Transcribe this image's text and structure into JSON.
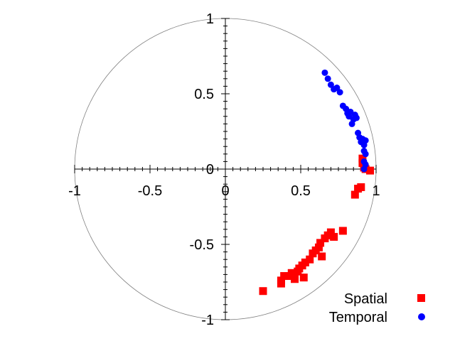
{
  "chart_data": {
    "type": "scatter",
    "title": "",
    "xlabel": "",
    "ylabel": "",
    "xlim": [
      -1,
      1
    ],
    "ylim": [
      -1,
      1
    ],
    "grid": false,
    "axes_through_origin": true,
    "unit_circle": true,
    "legend_position": "bottom-right",
    "x_ticks": [
      {
        "value": -1,
        "label": "-1"
      },
      {
        "value": -0.5,
        "label": "-0.5"
      },
      {
        "value": 0,
        "label": "0"
      },
      {
        "value": 0.5,
        "label": "0.5"
      },
      {
        "value": 1,
        "label": "1"
      }
    ],
    "y_ticks": [
      {
        "value": 1,
        "label": "1"
      },
      {
        "value": 0.5,
        "label": "0.5"
      },
      {
        "value": 0,
        "label": "0"
      },
      {
        "value": -0.5,
        "label": "-0.5"
      },
      {
        "value": -1,
        "label": "-1"
      }
    ],
    "series": [
      {
        "name": "Spatial",
        "color": "#ff0000",
        "marker": "square",
        "points": [
          [
            0.25,
            -0.81
          ],
          [
            0.37,
            -0.74
          ],
          [
            0.37,
            -0.76
          ],
          [
            0.39,
            -0.71
          ],
          [
            0.42,
            -0.71
          ],
          [
            0.44,
            -0.69
          ],
          [
            0.46,
            -0.72
          ],
          [
            0.46,
            -0.73
          ],
          [
            0.48,
            -0.68
          ],
          [
            0.49,
            -0.66
          ],
          [
            0.51,
            -0.64
          ],
          [
            0.52,
            -0.72
          ],
          [
            0.53,
            -0.62
          ],
          [
            0.56,
            -0.6
          ],
          [
            0.58,
            -0.56
          ],
          [
            0.6,
            -0.54
          ],
          [
            0.62,
            -0.52
          ],
          [
            0.63,
            -0.49
          ],
          [
            0.64,
            -0.58
          ],
          [
            0.66,
            -0.46
          ],
          [
            0.68,
            -0.44
          ],
          [
            0.7,
            -0.42
          ],
          [
            0.72,
            -0.45
          ],
          [
            0.78,
            -0.41
          ],
          [
            0.86,
            -0.17
          ],
          [
            0.88,
            -0.13
          ],
          [
            0.9,
            -0.12
          ],
          [
            0.91,
            0.07
          ],
          [
            0.91,
            0.04
          ],
          [
            0.92,
            0.02
          ],
          [
            0.92,
            0.01
          ],
          [
            0.93,
            0.0
          ],
          [
            0.96,
            -0.01
          ]
        ]
      },
      {
        "name": "Temporal",
        "color": "#0000ff",
        "marker": "circle",
        "points": [
          [
            0.66,
            0.64
          ],
          [
            0.68,
            0.6
          ],
          [
            0.7,
            0.56
          ],
          [
            0.72,
            0.53
          ],
          [
            0.74,
            0.54
          ],
          [
            0.76,
            0.51
          ],
          [
            0.78,
            0.42
          ],
          [
            0.8,
            0.4
          ],
          [
            0.81,
            0.37
          ],
          [
            0.82,
            0.35
          ],
          [
            0.83,
            0.38
          ],
          [
            0.84,
            0.3
          ],
          [
            0.85,
            0.33
          ],
          [
            0.86,
            0.36
          ],
          [
            0.87,
            0.34
          ],
          [
            0.88,
            0.24
          ],
          [
            0.89,
            0.21
          ],
          [
            0.9,
            0.18
          ],
          [
            0.91,
            0.2
          ],
          [
            0.92,
            0.16
          ],
          [
            0.93,
            0.19
          ],
          [
            0.92,
            0.12
          ],
          [
            0.93,
            0.1
          ],
          [
            0.92,
            0.05
          ],
          [
            0.93,
            0.03
          ],
          [
            0.92,
            0.0
          ]
        ]
      }
    ]
  }
}
